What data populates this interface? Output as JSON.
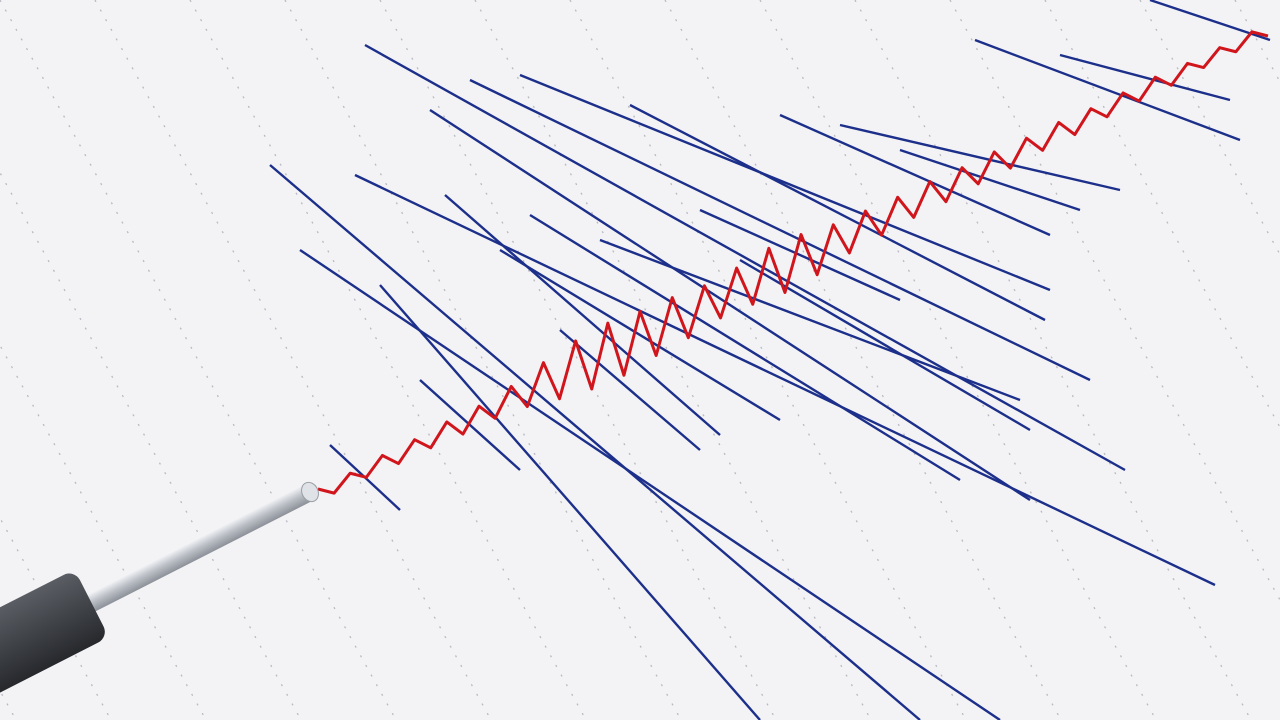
{
  "image": {
    "subject": "seismograph",
    "colors": {
      "paper": "#f3f3f5",
      "grid_dots": "#b9b9c2",
      "trace_blue": "#1c2f8a",
      "trace_red": "#d0161c",
      "pen_handle": "#3a3d42",
      "pen_shaft": "#c9ccd1"
    }
  }
}
